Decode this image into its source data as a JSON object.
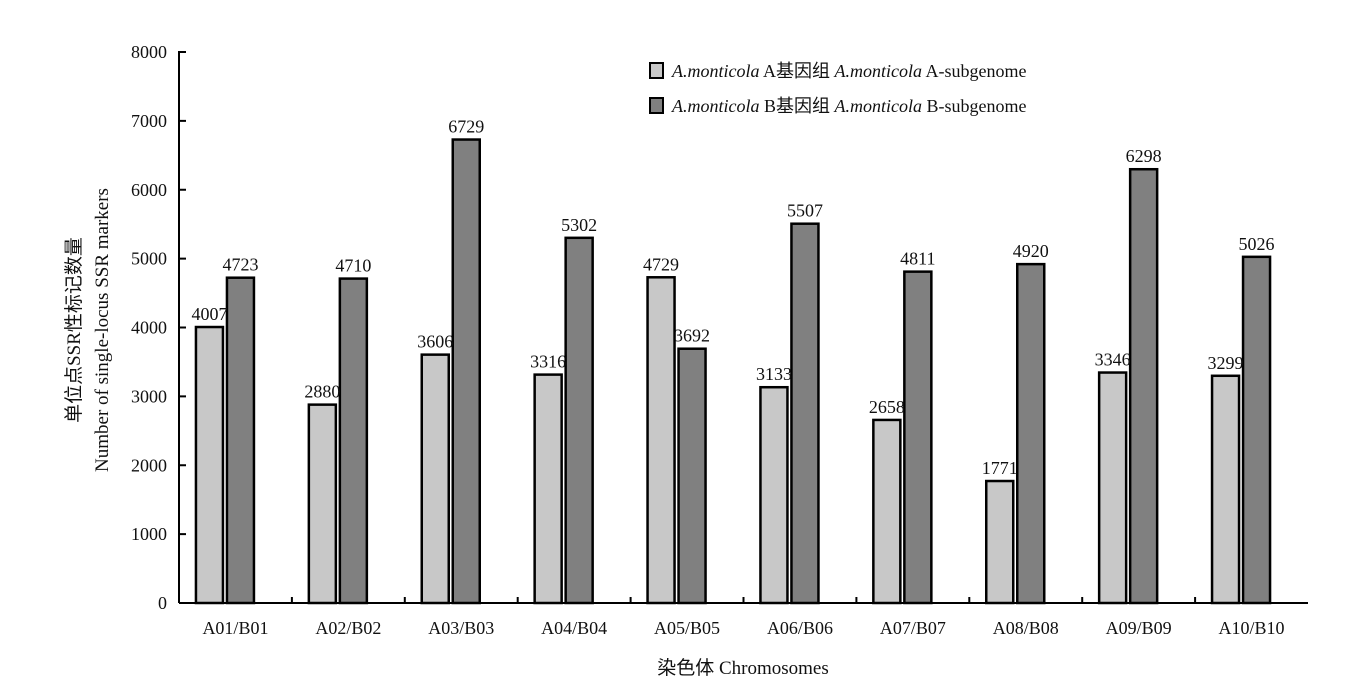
{
  "chart_data": {
    "type": "bar",
    "xlabel": "染色体 Chromosomes",
    "ylabel": [
      "单位点SSR性标记数量",
      "Number of single-locus SSR markers"
    ],
    "ylim": [
      0,
      8000
    ],
    "yticks": [
      0,
      1000,
      2000,
      3000,
      4000,
      5000,
      6000,
      7000,
      8000
    ],
    "categories": [
      "A01/B01",
      "A02/B02",
      "A03/B03",
      "A04/B04",
      "A05/B05",
      "A06/B06",
      "A07/B07",
      "A08/B08",
      "A09/B09",
      "A10/B10"
    ],
    "series": [
      {
        "name": "A.monticola A基因组 A.monticola A-subgenome",
        "legend_parts": [
          "A.monticola",
          " A基因组 ",
          "A.monticola",
          " A-subgenome"
        ],
        "color": "#c8c8c8",
        "values": [
          4007,
          2880,
          3606,
          3316,
          4729,
          3133,
          2658,
          1771,
          3346,
          3299
        ]
      },
      {
        "name": "A.monticola B基因组 A.monticola B-subgenome",
        "legend_parts": [
          "A.monticola",
          " B基因组 ",
          "A.monticola",
          " B-subgenome"
        ],
        "color": "#808080",
        "values": [
          4723,
          4710,
          6729,
          5302,
          3692,
          5507,
          4811,
          4920,
          6298,
          5026
        ]
      }
    ],
    "legend_position": "top-right",
    "grid": false
  }
}
